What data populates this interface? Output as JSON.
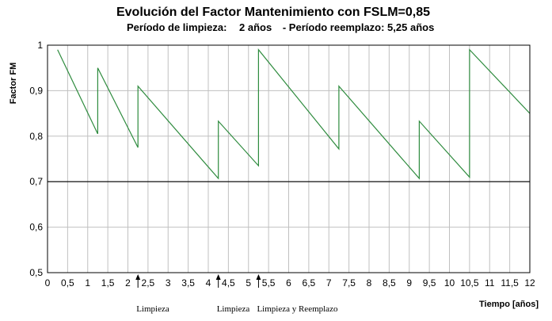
{
  "chart_data": {
    "type": "line",
    "title": "Evolución del Factor Mantenimiento con FSLM=0,85",
    "subtitle": {
      "period_cleaning_label": "Período de limpieza:",
      "period_cleaning_value": "2  años",
      "period_replace": "- Período reemplazo: 5,25 años"
    },
    "ylabel": "Factor FM",
    "xlabel": "Tiempo [años]",
    "xlim": [
      0,
      12
    ],
    "ylim": [
      0.5,
      1.0
    ],
    "grid": true,
    "x_tick_labels": [
      "0",
      "0,5",
      "1",
      "1,5",
      "2",
      "2,5",
      "3",
      "3,5",
      "4",
      "4,5",
      "5",
      "5,5",
      "6",
      "6,5",
      "7",
      "7,5",
      "8",
      "8,5",
      "9",
      "9,5",
      "10",
      "10,5",
      "11",
      "11,5",
      "12"
    ],
    "y_ticks": [
      {
        "value": 0.5,
        "label": "0,5"
      },
      {
        "value": 0.6,
        "label": "0,6"
      },
      {
        "value": 0.7,
        "label": "0,7"
      },
      {
        "value": 0.8,
        "label": "0,8"
      },
      {
        "value": 0.9,
        "label": "0,9"
      },
      {
        "value": 1.0,
        "label": "1"
      }
    ],
    "threshold": {
      "y": 0.7,
      "color": "#000000"
    },
    "series": [
      {
        "color": "#2e8b3e",
        "points": [
          [
            0.25,
            0.99
          ],
          [
            1.25,
            0.805
          ],
          [
            1.25,
            0.95
          ],
          [
            2.25,
            0.775
          ],
          [
            2.25,
            0.91
          ],
          [
            4.25,
            0.707
          ],
          [
            4.25,
            0.833
          ],
          [
            5.25,
            0.735
          ],
          [
            5.25,
            0.99
          ],
          [
            7.25,
            0.772
          ],
          [
            7.25,
            0.91
          ],
          [
            9.25,
            0.707
          ],
          [
            9.25,
            0.833
          ],
          [
            10.5,
            0.71
          ],
          [
            10.5,
            0.99
          ],
          [
            12.0,
            0.85
          ]
        ]
      }
    ],
    "annotations": [
      {
        "x": 2.25,
        "text": "Limpieza"
      },
      {
        "x": 4.25,
        "text": "Limpieza"
      },
      {
        "x": 5.25,
        "text": "Limpieza y Reemplazo"
      }
    ],
    "colors": {
      "grid": "#c0c0c0",
      "frame": "#000000",
      "series": "#2e8b3e"
    }
  }
}
